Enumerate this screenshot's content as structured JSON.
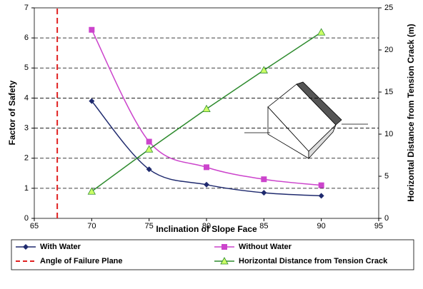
{
  "chart_data": {
    "type": "line",
    "x_label": "Inclination of Slope Face",
    "y_label": "Factor of Safety",
    "y2_label": "Horizontal Distance from Tension Crack (m)",
    "x": [
      70,
      75,
      80,
      85,
      90
    ],
    "xlim": [
      65,
      95
    ],
    "xticks": [
      65,
      70,
      75,
      80,
      85,
      90,
      95
    ],
    "ylim": [
      0,
      7
    ],
    "yticks": [
      0,
      1,
      2,
      3,
      4,
      5,
      6,
      7
    ],
    "y2lim": [
      0,
      25
    ],
    "y2ticks": [
      0,
      5,
      10,
      15,
      20,
      25
    ],
    "grid": true,
    "series": [
      {
        "name": "With Water",
        "color": "#1f2a6e",
        "marker": "diamond",
        "values": [
          3.9,
          1.63,
          1.12,
          0.85,
          0.75
        ]
      },
      {
        "name": "Without Water",
        "color": "#cc44cc",
        "marker": "square",
        "values": [
          6.27,
          2.55,
          1.7,
          1.3,
          1.1
        ]
      },
      {
        "name": "Angle of Failure Plane",
        "color": "#e02020",
        "marker": "none",
        "dashed": true,
        "x": [
          67,
          67
        ],
        "values": [
          0,
          7
        ]
      },
      {
        "name": "Horizontal Distance from Tension Crack",
        "color": "#2e8b2e",
        "marker": "triangle",
        "axis": "y2",
        "values": [
          3.2,
          8.2,
          13.0,
          17.6,
          22.1
        ]
      }
    ]
  }
}
